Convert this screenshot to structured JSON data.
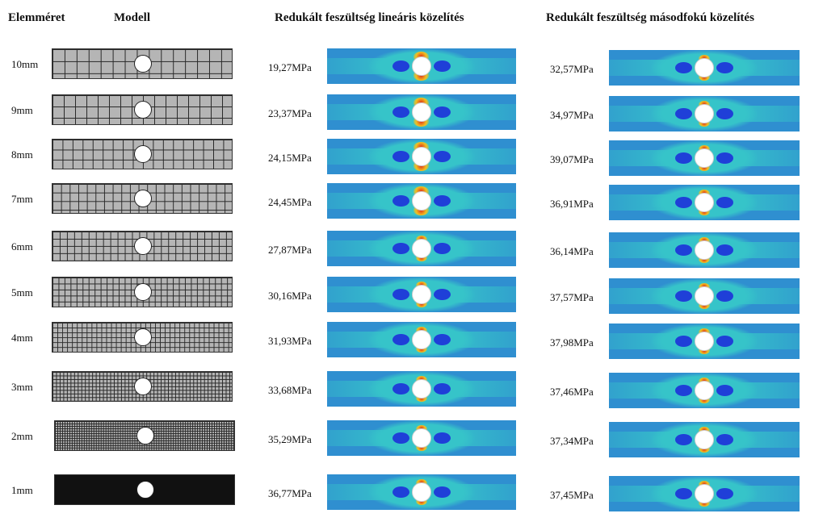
{
  "headers": {
    "element_size": "Elemméret",
    "model": "Modell",
    "linear": "Redukált feszültség lineáris közelítés",
    "quadratic": "Redukált feszültség másodfokú közelítés"
  },
  "rows": [
    {
      "size": "10mm",
      "linear": "19,27MPa",
      "quadratic": "32,57MPa",
      "mesh_cells": 15
    },
    {
      "size": "9mm",
      "linear": "23,37MPa",
      "quadratic": "34,97MPa",
      "mesh_cells": 16
    },
    {
      "size": "8mm",
      "linear": "24,15MPa",
      "quadratic": "39,07MPa",
      "mesh_cells": 18
    },
    {
      "size": "7mm",
      "linear": "24,45MPa",
      "quadratic": "36,91MPa",
      "mesh_cells": 21
    },
    {
      "size": "6mm",
      "linear": "27,87MPa",
      "quadratic": "36,14MPa",
      "mesh_cells": 25
    },
    {
      "size": "5mm",
      "linear": "30,16MPa",
      "quadratic": "37,57MPa",
      "mesh_cells": 30
    },
    {
      "size": "4mm",
      "linear": "31,93MPa",
      "quadratic": "37,98MPa",
      "mesh_cells": 37
    },
    {
      "size": "3mm",
      "linear": "33,68MPa",
      "quadratic": "37,46MPa",
      "mesh_cells": 50
    },
    {
      "size": "2mm",
      "linear": "35,29MPa",
      "quadratic": "37,34MPa",
      "mesh_cells": 75
    },
    {
      "size": "1mm",
      "linear": "36,77MPa",
      "quadratic": "37,45MPa",
      "mesh_cells": 150
    }
  ],
  "colors": {
    "mesh_bg": "#b5b5b5",
    "mesh_line": "#2a2a2a",
    "fine_mesh_bg": "#111111",
    "plot_base": "#2f8fd0",
    "plot_band": "#36c4c9",
    "plot_blue": "#1f3fd8",
    "plot_hot": "#f0c020",
    "plot_red": "#e03018"
  }
}
